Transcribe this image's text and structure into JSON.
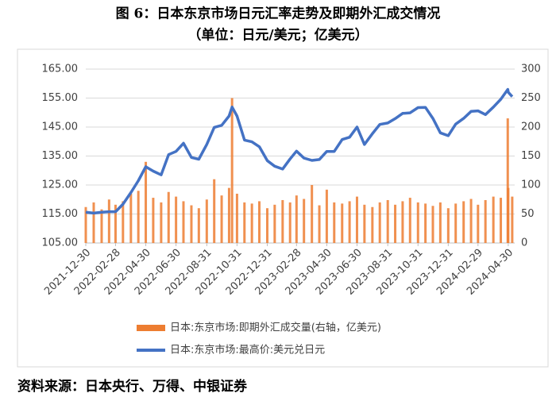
{
  "chart_data": {
    "type": "combo",
    "title": "图 6：日本东京市场日元汇率走势及即期外汇成交情况",
    "subtitle": "（单位：日元/美元；亿美元）",
    "source": "资料来源：日本央行、万得、中银证券",
    "x": [
      "2021-12-30",
      "2022-01-15",
      "2022-01-31",
      "2022-02-15",
      "2022-02-28",
      "2022-03-15",
      "2022-03-31",
      "2022-04-15",
      "2022-04-30",
      "2022-05-15",
      "2022-05-31",
      "2022-06-15",
      "2022-06-30",
      "2022-07-15",
      "2022-07-31",
      "2022-08-15",
      "2022-08-31",
      "2022-09-15",
      "2022-09-30",
      "2022-10-15",
      "2022-10-21",
      "2022-10-31",
      "2022-11-15",
      "2022-11-30",
      "2022-12-15",
      "2022-12-31",
      "2023-01-15",
      "2023-01-31",
      "2023-02-15",
      "2023-02-28",
      "2023-03-15",
      "2023-03-31",
      "2023-04-15",
      "2023-04-30",
      "2023-05-15",
      "2023-05-31",
      "2023-06-15",
      "2023-06-30",
      "2023-07-15",
      "2023-07-31",
      "2023-08-15",
      "2023-08-31",
      "2023-09-15",
      "2023-09-30",
      "2023-10-15",
      "2023-10-31",
      "2023-11-15",
      "2023-11-30",
      "2023-12-15",
      "2023-12-31",
      "2024-01-15",
      "2024-01-31",
      "2024-02-15",
      "2024-02-29",
      "2024-03-15",
      "2024-03-31",
      "2024-04-15",
      "2024-04-29",
      "2024-04-30",
      "2024-05-08"
    ],
    "series": [
      {
        "name": "日本:东京市场:即期外汇成交量(右轴，亿美元)",
        "type": "bar",
        "axis": "y2",
        "color": "#ed7d31",
        "values": [
          62,
          70,
          58,
          75,
          66,
          72,
          85,
          90,
          140,
          78,
          70,
          88,
          80,
          72,
          65,
          60,
          75,
          110,
          82,
          95,
          250,
          85,
          70,
          68,
          72,
          60,
          66,
          74,
          70,
          82,
          76,
          100,
          65,
          92,
          70,
          68,
          72,
          80,
          66,
          62,
          70,
          74,
          66,
          72,
          78,
          70,
          68,
          64,
          70,
          60,
          68,
          72,
          76,
          66,
          74,
          80,
          78,
          215,
          95,
          80
        ]
      },
      {
        "name": "日本:东京市场:最高价:美元兑日元",
        "type": "line",
        "color": "#4472c4",
        "values": [
          115.6,
          115.3,
          115.6,
          115.8,
          115.8,
          118.4,
          122.4,
          126.5,
          131.3,
          129.8,
          128.5,
          135.5,
          136.6,
          139.4,
          134.5,
          133.9,
          139.0,
          144.9,
          145.6,
          148.8,
          151.9,
          148.8,
          140.5,
          139.9,
          138.2,
          133.4,
          131.5,
          130.5,
          134.0,
          136.7,
          134.3,
          133.5,
          133.8,
          136.6,
          136.6,
          140.7,
          141.5,
          145.0,
          139.0,
          142.7,
          145.9,
          146.4,
          147.9,
          149.7,
          149.9,
          151.7,
          151.8,
          148.0,
          143.0,
          142.0,
          146.0,
          148.0,
          150.4,
          150.6,
          149.3,
          151.9,
          154.6,
          158.0,
          157.0,
          155.5
        ]
      }
    ],
    "xlim": [
      "2021-12-30",
      "2024-05-13"
    ],
    "xticks": [
      "2021-12-30",
      "2022-02-28",
      "2022-04-30",
      "2022-06-30",
      "2022-08-31",
      "2022-10-31",
      "2022-12-31",
      "2023-02-28",
      "2023-04-30",
      "2023-06-30",
      "2023-08-31",
      "2023-10-31",
      "2023-12-31",
      "2024-02-29",
      "2024-04-30"
    ],
    "ylim": [
      105,
      165
    ],
    "yticks": [
      {
        "value": 105,
        "label": "105.00"
      },
      {
        "value": 115,
        "label": "115.00"
      },
      {
        "value": 125,
        "label": "125.00"
      },
      {
        "value": 135,
        "label": "135.00"
      },
      {
        "value": 145,
        "label": "145.00"
      },
      {
        "value": 155,
        "label": "155.00"
      },
      {
        "value": 165,
        "label": "165.00"
      }
    ],
    "y2lim": [
      0,
      300
    ],
    "y2ticks": [
      0,
      50,
      100,
      150,
      200,
      250,
      300
    ],
    "grid": true
  }
}
